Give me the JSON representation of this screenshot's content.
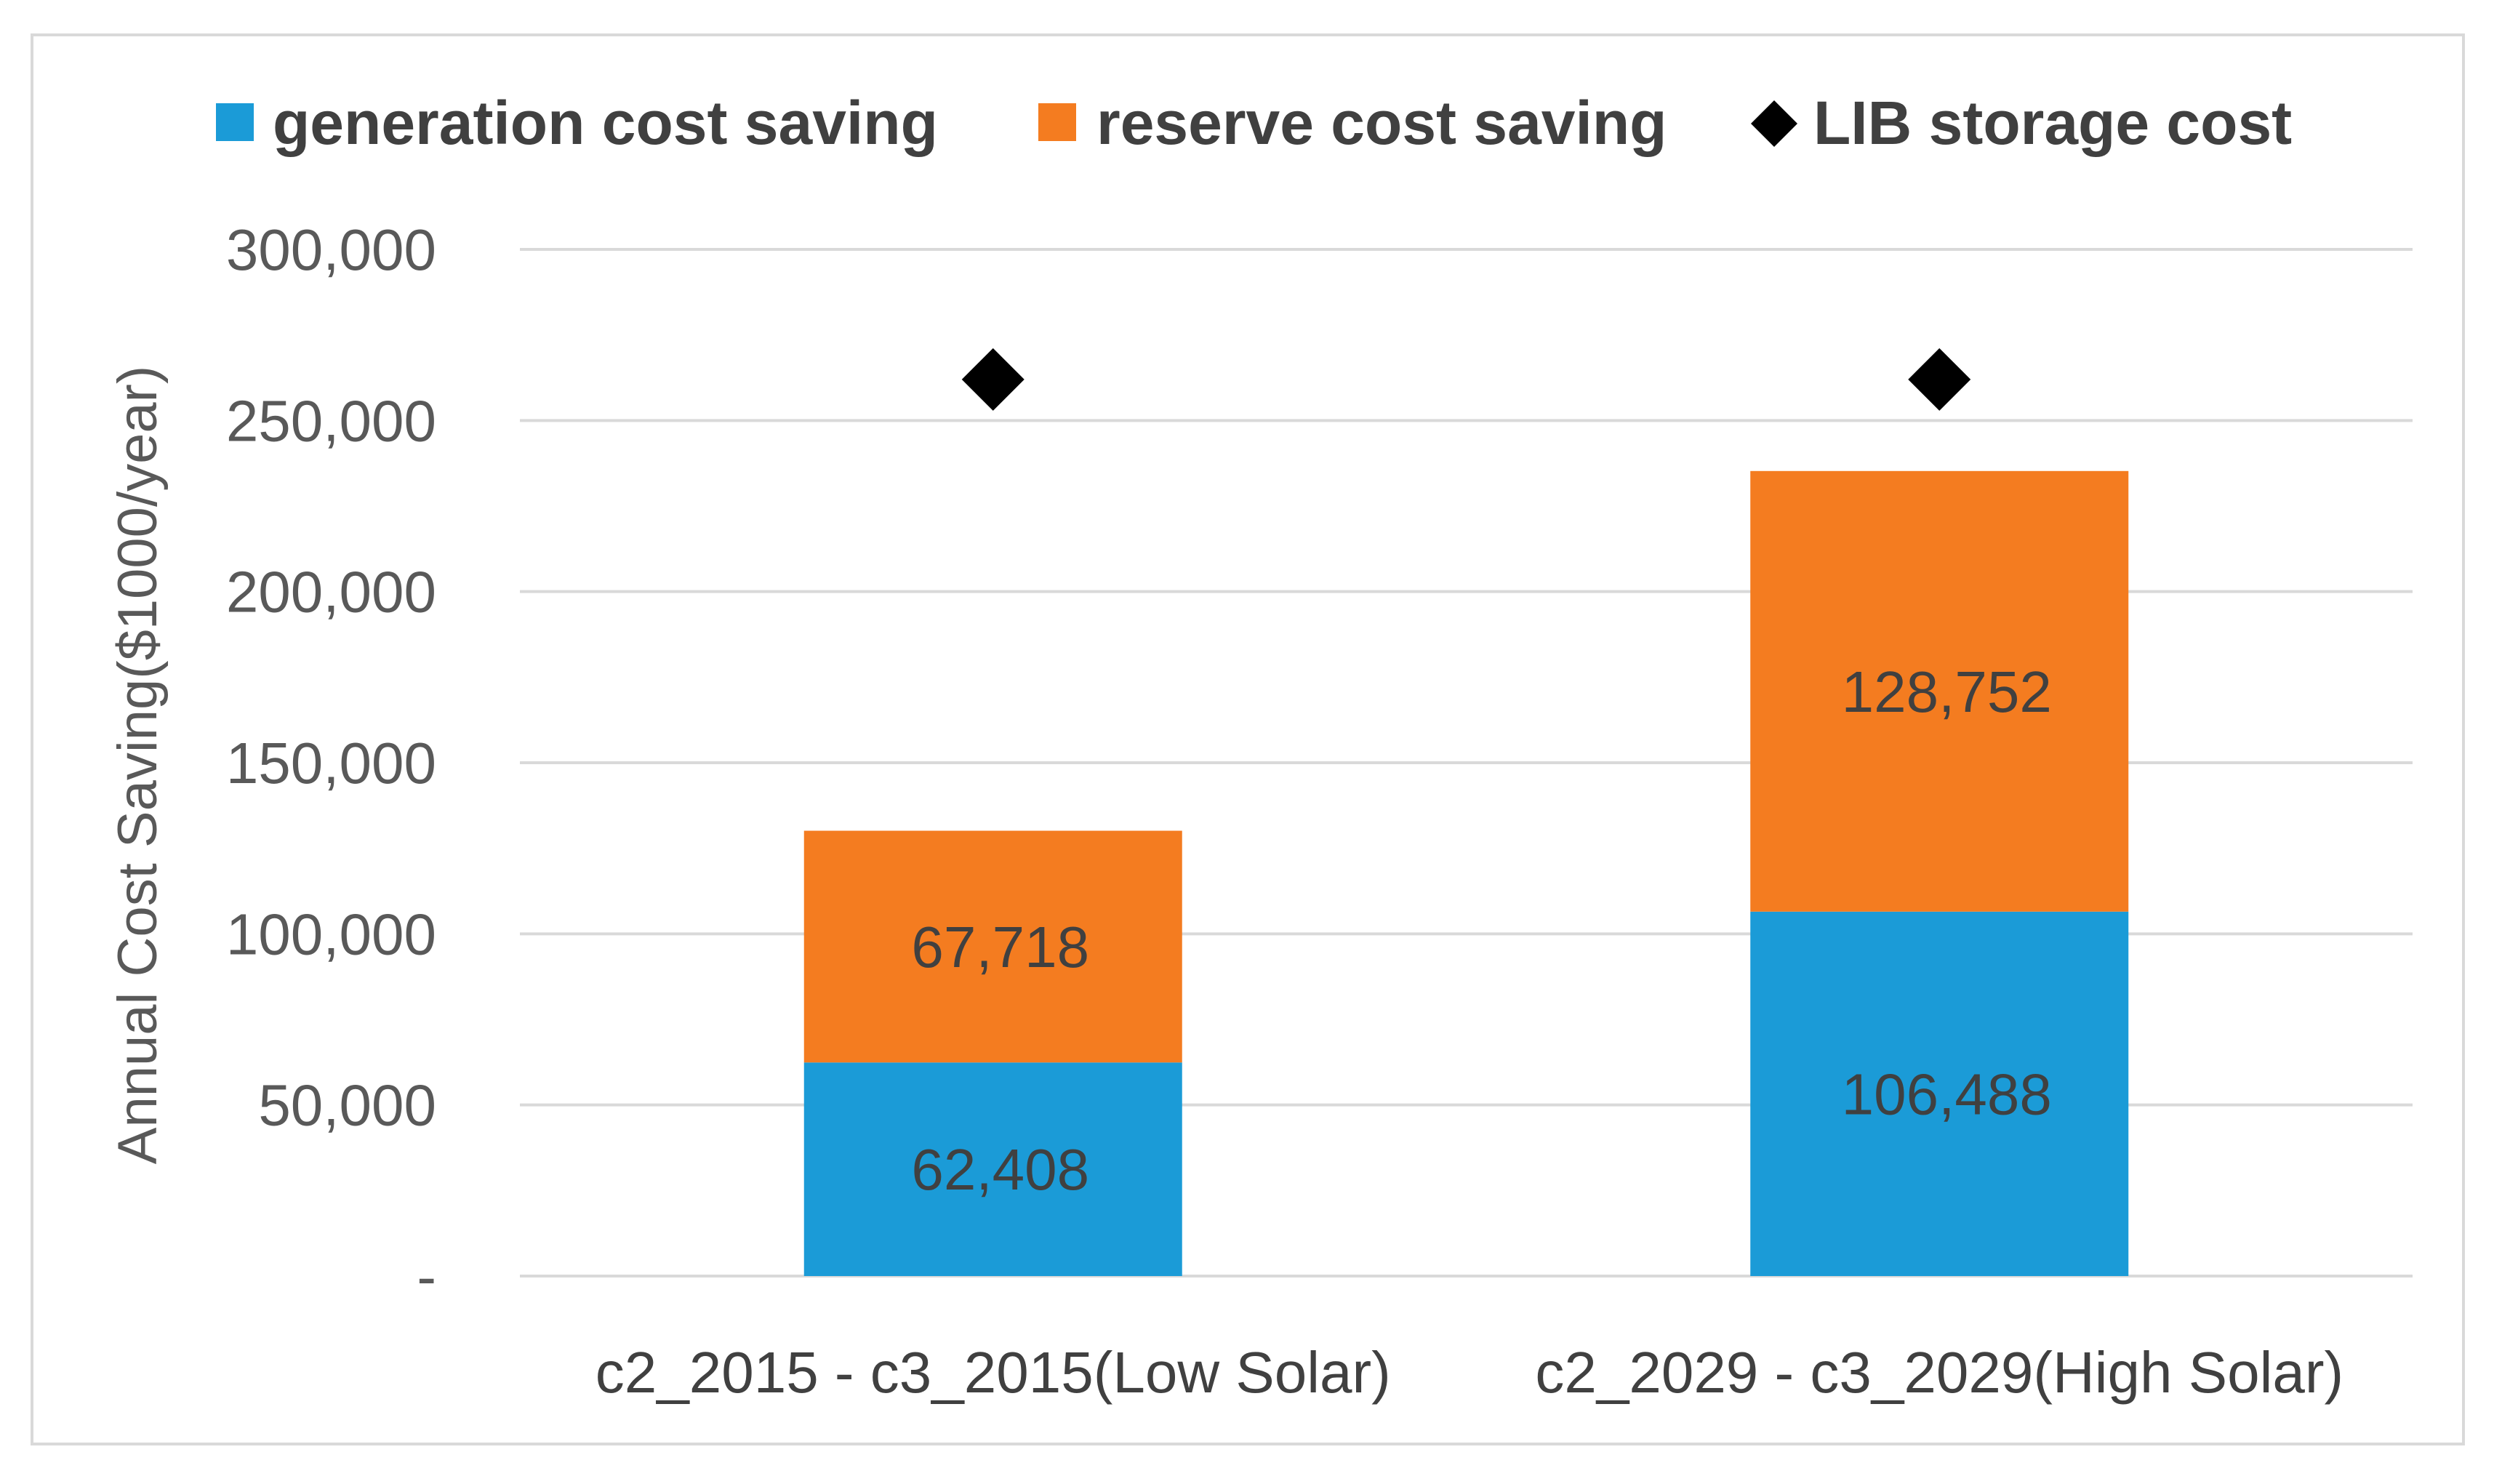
{
  "chart_data": {
    "type": "bar",
    "stacked": true,
    "title": "",
    "xlabel": "",
    "ylabel": "Annual Cost Saving($1000/year)",
    "ylim": [
      0,
      300000
    ],
    "yticks": [
      0,
      50000,
      100000,
      150000,
      200000,
      250000,
      300000
    ],
    "ytick_labels": [
      "-",
      "50,000",
      "100,000",
      "150,000",
      "200,000",
      "250,000",
      "300,000"
    ],
    "grid": true,
    "legend_position": "top",
    "categories": [
      "c2_2015 - c3_2015(Low Solar)",
      "c2_2029 - c3_2029(High Solar)"
    ],
    "series": [
      {
        "name": "generation cost saving",
        "kind": "bar",
        "color": "#1b9bd7",
        "values": [
          62408,
          106488
        ],
        "labels": [
          "62,408",
          "106,488"
        ]
      },
      {
        "name": "reserve cost saving",
        "kind": "bar",
        "color": "#f47c20",
        "values": [
          67718,
          128752
        ],
        "labels": [
          "67,718",
          "128,752"
        ]
      },
      {
        "name": "LIB storage cost",
        "kind": "marker",
        "marker": "diamond",
        "color": "#000000",
        "values": [
          262000,
          262000
        ]
      }
    ]
  }
}
